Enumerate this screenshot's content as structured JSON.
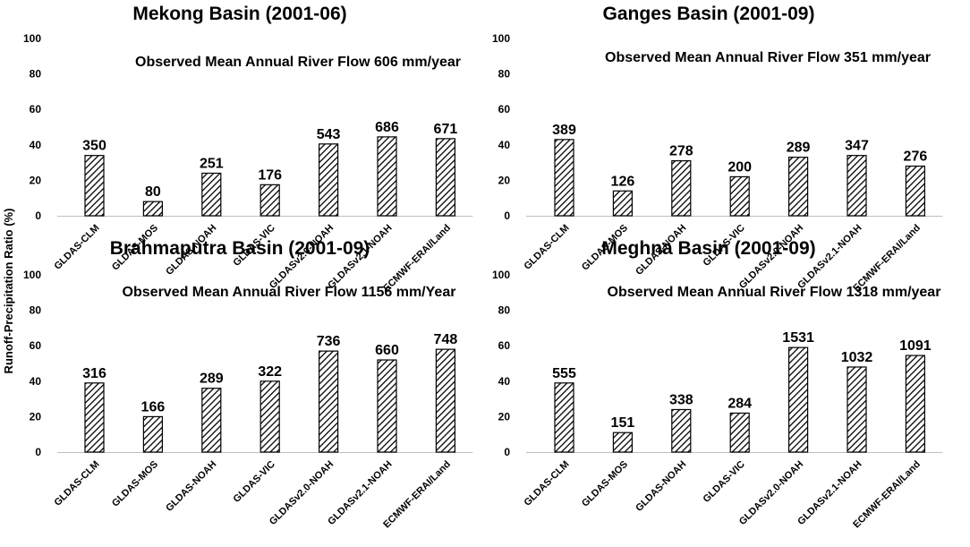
{
  "y_axis_title": "Runoff-Precipitation Ratio (%)",
  "chart_data": [
    {
      "type": "bar",
      "title": "Mekong Basin (2001-06)",
      "observed_note": "Observed Mean Annual River Flow 606 mm/year",
      "categories": [
        "GLDAS-CLM",
        "GLDAS-MOS",
        "GLDAS-NOAH",
        "GLDAS-VIC",
        "GLDASv2.0-NOAH",
        "GLDASv2.1-NOAH",
        "ECMWF-ERAI/Land"
      ],
      "values": [
        34,
        8,
        24,
        17.5,
        40.5,
        44.5,
        43.5
      ],
      "data_labels": [
        "350",
        "80",
        "251",
        "176",
        "543",
        "686",
        "671"
      ],
      "yticks": [
        "0",
        "20",
        "40",
        "60",
        "80",
        "100"
      ],
      "ylim": [
        0,
        100
      ],
      "ylabel": "Runoff-Precipitation Ratio (%)",
      "xlabel": "",
      "bar_fill": "hatched",
      "grid": false
    },
    {
      "type": "bar",
      "title": "Ganges Basin (2001-09)",
      "observed_note": "Observed Mean Annual River Flow 351 mm/year",
      "categories": [
        "GLDAS-CLM",
        "GLDAS-MOS",
        "GLDAS-NOAH",
        "GLDAS-VIC",
        "GLDASv2.0-NOAH",
        "GLDASv2.1-NOAH",
        "ECMWF-ERAI/Land"
      ],
      "values": [
        43,
        14,
        31,
        22,
        33,
        34,
        28
      ],
      "data_labels": [
        "389",
        "126",
        "278",
        "200",
        "289",
        "347",
        "276"
      ],
      "yticks": [
        "0",
        "20",
        "40",
        "60",
        "80",
        "100"
      ],
      "ylim": [
        0,
        100
      ],
      "ylabel": "Runoff-Precipitation Ratio (%)",
      "xlabel": "",
      "bar_fill": "hatched",
      "grid": false
    },
    {
      "type": "bar",
      "title": "Brahmaputra Basin (2001-09)",
      "observed_note": "Observed Mean Annual River Flow 1156 mm/Year",
      "categories": [
        "GLDAS-CLM",
        "GLDAS-MOS",
        "GLDAS-NOAH",
        "GLDAS-VIC",
        "GLDASv2.0-NOAH",
        "GLDASv2.1-NOAH",
        "ECMWF-ERAI/Land"
      ],
      "values": [
        39,
        20,
        36,
        40,
        57,
        52,
        58
      ],
      "data_labels": [
        "316",
        "166",
        "289",
        "322",
        "736",
        "660",
        "748"
      ],
      "yticks": [
        "0",
        "20",
        "40",
        "60",
        "80",
        "100"
      ],
      "ylim": [
        0,
        100
      ],
      "ylabel": "Runoff-Precipitation Ratio (%)",
      "xlabel": "",
      "bar_fill": "hatched",
      "grid": false
    },
    {
      "type": "bar",
      "title": "Meghna Basin (2001-09)",
      "observed_note": "Observed Mean Annual River Flow 1318 mm/year",
      "categories": [
        "GLDAS-CLM",
        "GLDAS-MOS",
        "GLDAS-NOAH",
        "GLDAS-VIC",
        "GLDASv2.0-NOAH",
        "GLDASv2.1-NOAH",
        "ECMWF-ERAI/Land"
      ],
      "values": [
        39,
        11,
        24,
        22,
        59,
        48,
        54.5
      ],
      "data_labels": [
        "555",
        "151",
        "338",
        "284",
        "1531",
        "1032",
        "1091"
      ],
      "yticks": [
        "0",
        "20",
        "40",
        "60",
        "80",
        "100"
      ],
      "ylim": [
        0,
        100
      ],
      "ylabel": "Runoff-Precipitation Ratio (%)",
      "xlabel": "",
      "bar_fill": "hatched",
      "grid": false
    }
  ]
}
